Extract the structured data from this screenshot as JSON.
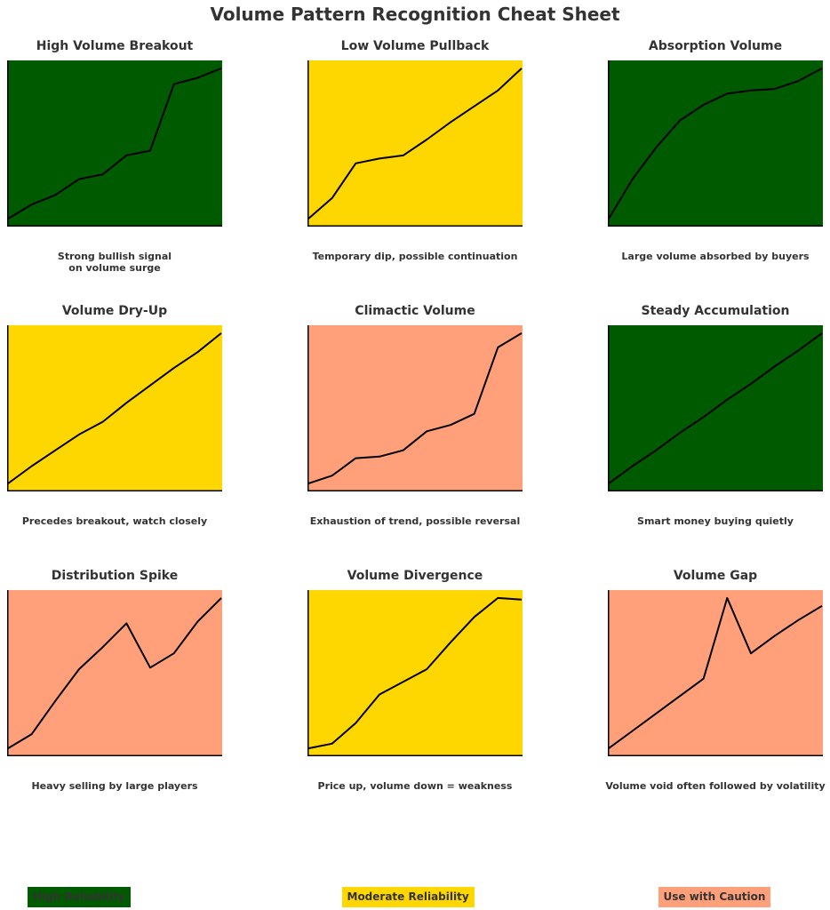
{
  "title": "Volume Pattern Recognition Cheat Sheet",
  "colors": {
    "high": "#005a00",
    "moderate": "#ffd700",
    "caution": "#ffa07a"
  },
  "legend": [
    {
      "label": "High Reliability",
      "color": "#005a00"
    },
    {
      "label": "Moderate Reliability",
      "color": "#ffd700"
    },
    {
      "label": "Use with Caution",
      "color": "#ffa07a"
    }
  ],
  "chart_data": [
    {
      "type": "line",
      "title": "High Volume Breakout",
      "description": "Strong bullish signal\non volume surge",
      "reliability": "high",
      "x": [
        0,
        1,
        2,
        3,
        4,
        5,
        6,
        7,
        8,
        9
      ],
      "y": [
        0.05,
        0.14,
        0.2,
        0.3,
        0.33,
        0.45,
        0.48,
        0.9,
        0.94,
        1.0
      ],
      "ylim": [
        0,
        1.05
      ]
    },
    {
      "type": "line",
      "title": "Low Volume Pullback",
      "description": "Temporary dip, possible continuation",
      "reliability": "moderate",
      "x": [
        0,
        1,
        2,
        3,
        4,
        5,
        6,
        7,
        8,
        9
      ],
      "y": [
        0.05,
        0.18,
        0.4,
        0.43,
        0.45,
        0.55,
        0.66,
        0.76,
        0.86,
        1.0
      ],
      "ylim": [
        0,
        1.05
      ]
    },
    {
      "type": "line",
      "title": "Absorption Volume",
      "description": "Large volume absorbed by buyers",
      "reliability": "high",
      "x": [
        0,
        1,
        2,
        3,
        4,
        5,
        6,
        7,
        8,
        9
      ],
      "y": [
        0.05,
        0.3,
        0.5,
        0.67,
        0.77,
        0.84,
        0.86,
        0.87,
        0.92,
        1.0
      ],
      "ylim": [
        0,
        1.05
      ]
    },
    {
      "type": "line",
      "title": "Volume Dry-Up",
      "description": "Precedes breakout, watch closely",
      "reliability": "moderate",
      "x": [
        0,
        1,
        2,
        3,
        4,
        5,
        6,
        7,
        8,
        9
      ],
      "y": [
        0.05,
        0.16,
        0.26,
        0.36,
        0.44,
        0.56,
        0.67,
        0.78,
        0.88,
        1.0
      ],
      "ylim": [
        0,
        1.05
      ]
    },
    {
      "type": "line",
      "title": "Climactic Volume",
      "description": "Exhaustion of trend, possible reversal",
      "reliability": "caution",
      "x": [
        0,
        1,
        2,
        3,
        4,
        5,
        6,
        7,
        8,
        9
      ],
      "y": [
        0.05,
        0.1,
        0.21,
        0.22,
        0.26,
        0.38,
        0.42,
        0.49,
        0.91,
        1.0
      ],
      "ylim": [
        0,
        1.05
      ]
    },
    {
      "type": "line",
      "title": "Steady Accumulation",
      "description": "Smart money buying quietly",
      "reliability": "high",
      "x": [
        0,
        1,
        2,
        3,
        4,
        5,
        6,
        7,
        8,
        9
      ],
      "y": [
        0.05,
        0.16,
        0.26,
        0.37,
        0.47,
        0.58,
        0.68,
        0.79,
        0.89,
        1.0
      ],
      "ylim": [
        0,
        1.05
      ]
    },
    {
      "type": "line",
      "title": "Distribution Spike",
      "description": "Heavy selling by large players",
      "reliability": "caution",
      "x": [
        0,
        1,
        2,
        3,
        4,
        5,
        6,
        7,
        8,
        9
      ],
      "y": [
        0.05,
        0.14,
        0.35,
        0.55,
        0.69,
        0.84,
        0.56,
        0.65,
        0.85,
        1.0
      ],
      "ylim": [
        0,
        1.05
      ]
    },
    {
      "type": "line",
      "title": "Volume Divergence",
      "description": "Price up, volume down = weakness",
      "reliability": "moderate",
      "x": [
        0,
        1,
        2,
        3,
        4,
        5,
        6,
        7,
        8,
        9
      ],
      "y": [
        0.05,
        0.08,
        0.21,
        0.39,
        0.47,
        0.55,
        0.72,
        0.88,
        1.0,
        0.99
      ],
      "ylim": [
        0,
        1.05
      ]
    },
    {
      "type": "line",
      "title": "Volume Gap",
      "description": "Volume void often followed by volatility",
      "reliability": "caution",
      "x": [
        0,
        1,
        2,
        3,
        4,
        5,
        6,
        7,
        8,
        9
      ],
      "y": [
        0.05,
        0.16,
        0.27,
        0.38,
        0.49,
        1.0,
        0.65,
        0.76,
        0.86,
        0.95
      ],
      "ylim": [
        0,
        1.05
      ]
    }
  ]
}
